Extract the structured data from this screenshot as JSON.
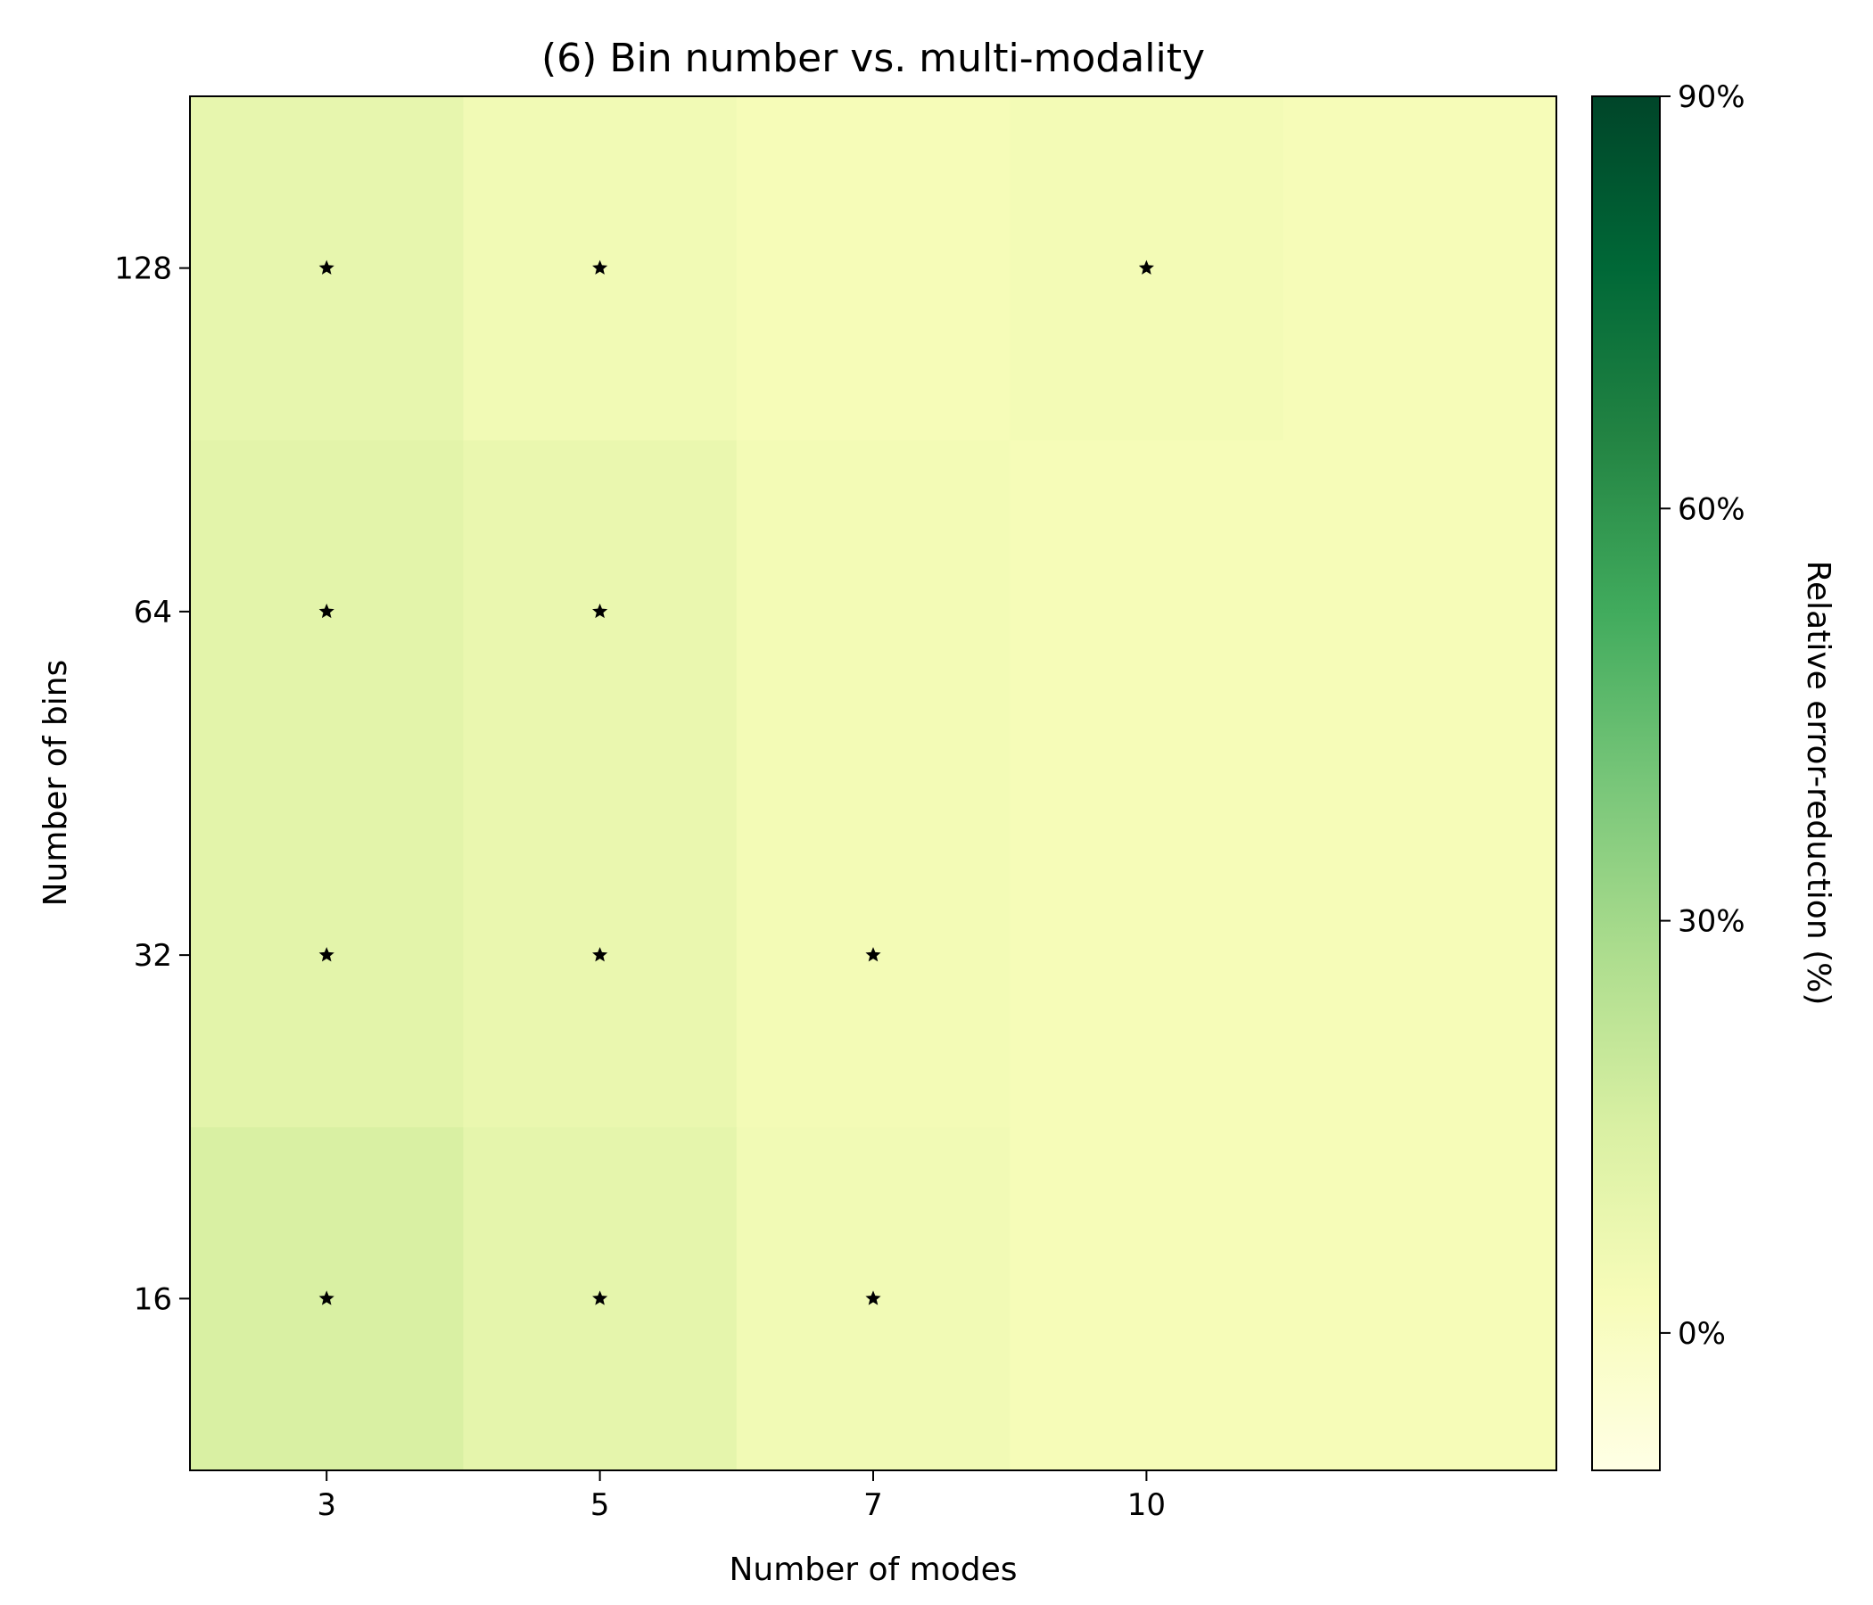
{
  "chart_data": {
    "type": "heatmap",
    "title": "(6)  Bin number vs. multi-modality",
    "xlabel": "Number of modes",
    "ylabel": "Number of bins",
    "colorbar_label": "Relative error-reduction (%)",
    "x_categories": [
      "3",
      "5",
      "7",
      "10",
      ""
    ],
    "y_categories": [
      "16",
      "32",
      "64",
      "128"
    ],
    "values": [
      [
        15,
        10,
        5,
        3,
        3
      ],
      [
        11,
        8,
        4,
        3,
        3
      ],
      [
        11,
        8,
        4,
        3,
        3
      ],
      [
        9,
        5,
        3,
        4,
        3
      ]
    ],
    "significant": [
      [
        true,
        true,
        true,
        false,
        false
      ],
      [
        true,
        true,
        true,
        false,
        false
      ],
      [
        true,
        true,
        false,
        false,
        false
      ],
      [
        true,
        true,
        false,
        true,
        false
      ]
    ],
    "colorbar": {
      "range": [
        -10,
        90
      ],
      "ticks": [
        0,
        30,
        60,
        90
      ],
      "tick_labels": [
        "0%",
        "30%",
        "60%",
        "90%"
      ],
      "colormap": [
        "#ffffe5",
        "#f7fcb9",
        "#d9f0a3",
        "#addd8e",
        "#78c679",
        "#41ab5d",
        "#238443",
        "#006837",
        "#004529"
      ]
    },
    "marker": "*",
    "marker_color": "#000000",
    "grid": false
  }
}
